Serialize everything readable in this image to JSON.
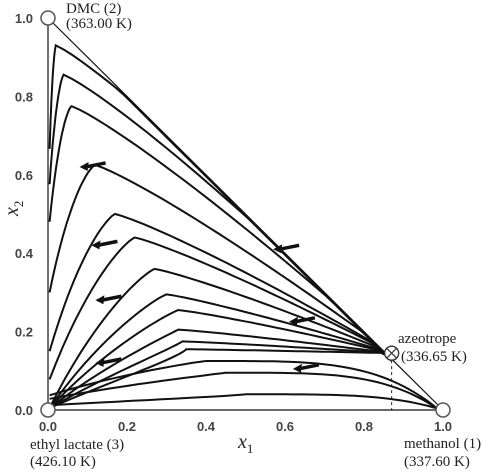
{
  "chart_data": {
    "type": "ternary-line",
    "xlabel": "x",
    "xlabel_sub": "1",
    "ylabel": "x",
    "ylabel_sub": "2",
    "xlim": [
      0.0,
      1.0
    ],
    "ylim": [
      0.0,
      1.0
    ],
    "x_ticks": [
      "0.0",
      "0.2",
      "0.4",
      "0.6",
      "0.8",
      "1.0"
    ],
    "y_ticks": [
      "0.0",
      "0.2",
      "0.4",
      "0.6",
      "0.8",
      "1.0"
    ],
    "vertices": {
      "dmc": {
        "line1": "DMC (2)",
        "line2": "(363.00 K)",
        "x": 0.0,
        "y": 1.0
      },
      "ethyl_lactate": {
        "line1": "ethyl lactate (3)",
        "line2": "(426.10 K)",
        "x": 0.0,
        "y": 0.0
      },
      "methanol": {
        "line1": "methanol (1)",
        "line2": "(337.60 K)",
        "x": 1.0,
        "y": 0.0
      }
    },
    "azeotrope": {
      "line1": "azeotrope",
      "line2": "(336.65 K)",
      "x": 0.87,
      "y": 0.145
    },
    "curves": [
      {
        "h": 0.93,
        "peak": 0.02,
        "k": 3.0
      },
      {
        "h": 0.855,
        "peak": 0.04,
        "k": 3.0
      },
      {
        "h": 0.775,
        "peak": 0.06,
        "k": 3.0
      },
      {
        "h": 0.625,
        "peak": 0.12,
        "k": 2.8
      },
      {
        "h": 0.5,
        "peak": 0.17,
        "k": 2.6
      },
      {
        "h": 0.44,
        "peak": 0.22,
        "k": 2.5
      },
      {
        "h": 0.36,
        "peak": 0.27,
        "k": 2.4
      },
      {
        "h": 0.295,
        "peak": 0.3,
        "k": 2.3
      },
      {
        "h": 0.255,
        "peak": 0.33,
        "k": 2.2
      },
      {
        "h": 0.205,
        "peak": 0.33,
        "k": 2.0
      },
      {
        "h": 0.175,
        "peak": 0.34,
        "k": 1.8
      },
      {
        "h": 0.155,
        "peak": 0.35,
        "k": 1.6
      },
      {
        "h": 0.125,
        "peak": 0.4,
        "k": 1.2
      },
      {
        "h": 0.095,
        "peak": 0.45,
        "k": 1.0
      },
      {
        "h": 0.04,
        "peak": 0.5,
        "k": 0.6
      }
    ],
    "arrows": [
      {
        "x": 0.08,
        "y": 0.62
      },
      {
        "x": 0.11,
        "y": 0.42
      },
      {
        "x": 0.12,
        "y": 0.28
      },
      {
        "x": 0.12,
        "y": 0.12
      },
      {
        "x": 0.57,
        "y": 0.41
      },
      {
        "x": 0.61,
        "y": 0.225
      },
      {
        "x": 0.62,
        "y": 0.105
      }
    ],
    "grid": false
  }
}
